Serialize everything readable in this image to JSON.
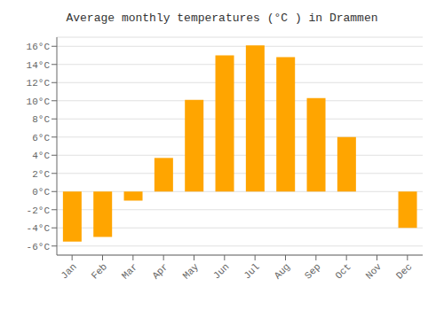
{
  "chart_data": {
    "type": "bar",
    "title": "Average monthly temperatures (°C ) in Drammen",
    "categories": [
      "Jan",
      "Feb",
      "Mar",
      "Apr",
      "May",
      "Jun",
      "Jul",
      "Aug",
      "Sep",
      "Oct",
      "Nov",
      "Dec"
    ],
    "values": [
      -5.5,
      -5.0,
      -1.0,
      3.7,
      10.1,
      15.0,
      16.1,
      14.8,
      10.3,
      6.0,
      0.0,
      -4.0
    ],
    "color": "#FFA500",
    "ylim": [
      -7,
      17
    ],
    "yticks": [
      {
        "value": -6,
        "label": "-6°C"
      },
      {
        "value": -4,
        "label": "-4°C"
      },
      {
        "value": -2,
        "label": "-2°C"
      },
      {
        "value": 0,
        "label": "0°C"
      },
      {
        "value": 2,
        "label": "2°C"
      },
      {
        "value": 4,
        "label": "4°C"
      },
      {
        "value": 6,
        "label": "6°C"
      },
      {
        "value": 8,
        "label": "8°C"
      },
      {
        "value": 10,
        "label": "10°C"
      },
      {
        "value": 12,
        "label": "12°C"
      },
      {
        "value": 14,
        "label": "14°C"
      },
      {
        "value": 16,
        "label": "16°C"
      }
    ],
    "grid": true
  }
}
